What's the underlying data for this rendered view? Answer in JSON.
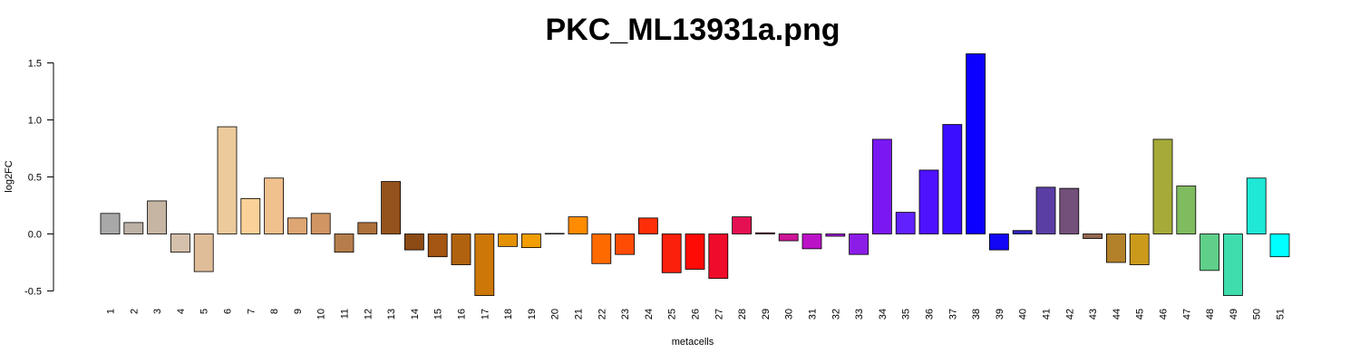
{
  "chart_data": {
    "type": "bar",
    "title": "PKC_ML13931a.png",
    "xlabel": "metacells",
    "ylabel": "log2FC",
    "ylim": [
      -0.5,
      1.5
    ],
    "yticks": [
      "-0.5",
      "0.0",
      "0.5",
      "1.0",
      "1.5"
    ],
    "yticks_values": [
      -0.5,
      0.0,
      0.5,
      1.0,
      1.5
    ],
    "grid": false,
    "categories": [
      "1",
      "2",
      "3",
      "4",
      "5",
      "6",
      "7",
      "8",
      "9",
      "10",
      "11",
      "12",
      "13",
      "14",
      "15",
      "16",
      "17",
      "18",
      "19",
      "20",
      "21",
      "22",
      "23",
      "24",
      "25",
      "26",
      "27",
      "28",
      "29",
      "30",
      "31",
      "32",
      "33",
      "34",
      "35",
      "36",
      "37",
      "38",
      "39",
      "40",
      "41",
      "42",
      "43",
      "44",
      "45",
      "46",
      "47",
      "48",
      "49",
      "50",
      "51"
    ],
    "values": [
      0.18,
      0.1,
      0.29,
      -0.16,
      -0.33,
      0.94,
      0.31,
      0.49,
      0.14,
      0.18,
      -0.16,
      0.1,
      0.46,
      -0.14,
      -0.2,
      -0.27,
      -0.54,
      -0.11,
      -0.12,
      0.0,
      0.15,
      -0.26,
      -0.18,
      0.14,
      -0.34,
      -0.31,
      -0.39,
      0.15,
      0.01,
      -0.06,
      -0.13,
      -0.02,
      -0.18,
      0.83,
      0.19,
      0.56,
      0.96,
      1.58,
      -0.14,
      0.03,
      0.41,
      0.4,
      -0.04,
      -0.25,
      -0.27,
      0.83,
      0.42,
      -0.32,
      -0.54,
      0.49,
      -0.2
    ],
    "colors": [
      "#a8a8a8",
      "#bdb1a5",
      "#c6b5a3",
      "#d5c0ab",
      "#dfbd98",
      "#ecca9b",
      "#fad198",
      "#f0c08d",
      "#dda673",
      "#d09562",
      "#b67d4c",
      "#ad713b",
      "#94521c",
      "#8c4a14",
      "#a45612",
      "#b0620e",
      "#cc7708",
      "#e49105",
      "#f19d03",
      "#ffaa00",
      "#ff8b00",
      "#ff6a00",
      "#ff4c05",
      "#ff2e08",
      "#fb200c",
      "#ff0b05",
      "#ee0c2a",
      "#e51052",
      "#b91a68",
      "#cc1696",
      "#bb12c7",
      "#9e18d8",
      "#8b1de6",
      "#7a18f3",
      "#6121ff",
      "#4e12ff",
      "#3c0eff",
      "#0b00ff",
      "#1206f5",
      "#2e25c4",
      "#5a3ea4",
      "#735079",
      "#94674f",
      "#b38129",
      "#cc9a1b",
      "#a6aa38",
      "#7fbb5f",
      "#5fcf89",
      "#3fddae",
      "#1fe8d7",
      "#00ffff"
    ]
  }
}
